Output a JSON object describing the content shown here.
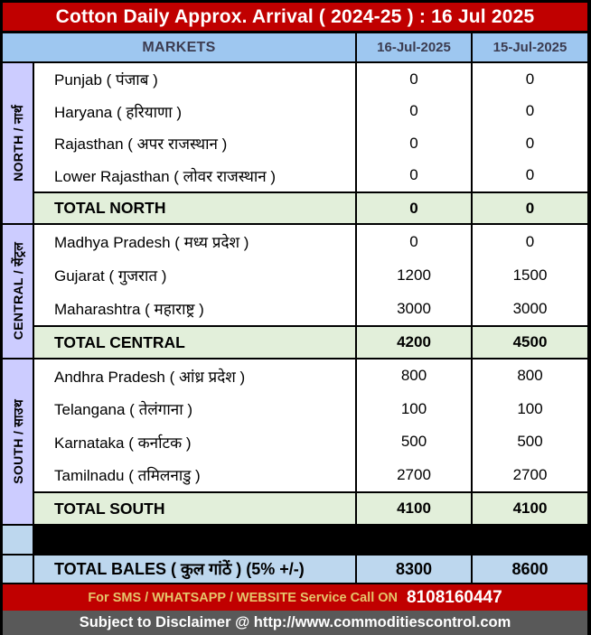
{
  "title": "Cotton Daily Approx. Arrival ( 2024-25 ) : 16 Jul 2025",
  "header": {
    "markets": "MARKETS",
    "col1": "16-Jul-2025",
    "col2": "15-Jul-2025"
  },
  "sections": [
    {
      "region": "NORTH / नार्थ",
      "rows": [
        {
          "name": "Punjab ( पंजाब )",
          "v1": "0",
          "v2": "0"
        },
        {
          "name": "Haryana ( हरियाणा )",
          "v1": "0",
          "v2": "0"
        },
        {
          "name": "Rajasthan ( अपर राजस्थान )",
          "v1": "0",
          "v2": "0"
        },
        {
          "name": "Lower Rajasthan ( लोवर राजस्थान )",
          "v1": "0",
          "v2": "0"
        }
      ],
      "total": {
        "label": "TOTAL NORTH",
        "v1": "0",
        "v2": "0"
      }
    },
    {
      "region": "CENTRAL / सेंट्रल",
      "rows": [
        {
          "name": "Madhya Pradesh ( मध्य प्रदेश )",
          "v1": "0",
          "v2": "0"
        },
        {
          "name": "Gujarat ( गुजरात )",
          "v1": "1200",
          "v2": "1500"
        },
        {
          "name": "Maharashtra ( महाराष्ट्र )",
          "v1": "3000",
          "v2": "3000"
        }
      ],
      "total": {
        "label": "TOTAL CENTRAL",
        "v1": "4200",
        "v2": "4500"
      }
    },
    {
      "region": "SOUTH / साउथ",
      "rows": [
        {
          "name": "Andhra Pradesh ( आंध्र प्रदेश )",
          "v1": "800",
          "v2": "800"
        },
        {
          "name": "Telangana ( तेलंगाना )",
          "v1": "100",
          "v2": "100"
        },
        {
          "name": "Karnataka ( कर्नाटक )",
          "v1": "500",
          "v2": "500"
        },
        {
          "name": "Tamilnadu ( तमिलनाडु )",
          "v1": "2700",
          "v2": "2700"
        }
      ],
      "total": {
        "label": "TOTAL SOUTH",
        "v1": "4100",
        "v2": "4100"
      }
    }
  ],
  "grand_total": {
    "label": "TOTAL BALES ( कुल गांठें ) (5% +/-)",
    "v1": "8300",
    "v2": "8600"
  },
  "footer": {
    "sms_text": "For SMS / WHATSAPP / WEBSITE Service Call  ON",
    "phone": "8108160447",
    "disclaimer": "Subject to Disclaimer @  http://www.commoditiescontrol.com"
  },
  "colors": {
    "red": "#c00000",
    "headerblue": "#9ec7f0",
    "lav": "#ccccff",
    "green": "#e2efda",
    "balesblue": "#bdd7ee",
    "gray": "#595959",
    "gold": "#e5c46b",
    "headertext": "#3c3c50"
  },
  "chart_data": {
    "type": "table",
    "title": "Cotton Daily Approx. Arrival ( 2024-25 ) : 16 Jul 2025",
    "columns": [
      "MARKETS",
      "16-Jul-2025",
      "15-Jul-2025"
    ],
    "groups": [
      {
        "region": "NORTH",
        "rows": [
          [
            "Punjab",
            0,
            0
          ],
          [
            "Haryana",
            0,
            0
          ],
          [
            "Rajasthan",
            0,
            0
          ],
          [
            "Lower Rajasthan",
            0,
            0
          ]
        ],
        "total": [
          "TOTAL NORTH",
          0,
          0
        ]
      },
      {
        "region": "CENTRAL",
        "rows": [
          [
            "Madhya Pradesh",
            0,
            0
          ],
          [
            "Gujarat",
            1200,
            1500
          ],
          [
            "Maharashtra",
            3000,
            3000
          ]
        ],
        "total": [
          "TOTAL CENTRAL",
          4200,
          4500
        ]
      },
      {
        "region": "SOUTH",
        "rows": [
          [
            "Andhra Pradesh",
            800,
            800
          ],
          [
            "Telangana",
            100,
            100
          ],
          [
            "Karnataka",
            500,
            500
          ],
          [
            "Tamilnadu",
            2700,
            2700
          ]
        ],
        "total": [
          "TOTAL SOUTH",
          4100,
          4100
        ]
      }
    ],
    "grand_total": [
      "TOTAL BALES (5% +/-)",
      8300,
      8600
    ]
  }
}
